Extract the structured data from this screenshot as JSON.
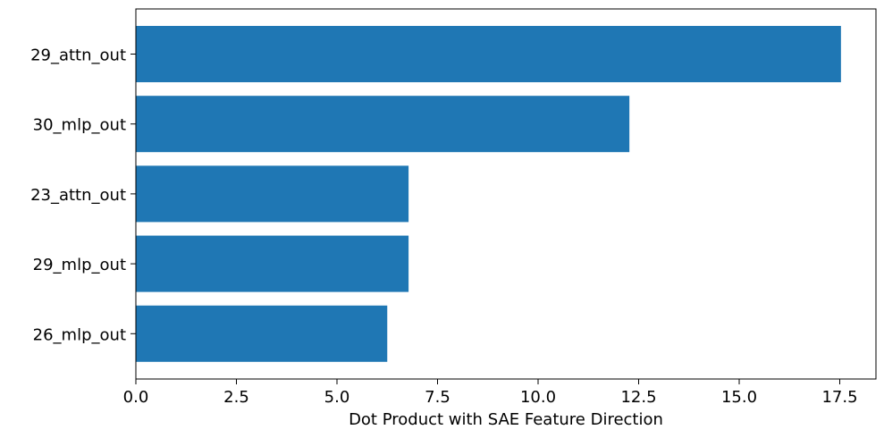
{
  "chart_data": {
    "type": "bar",
    "orientation": "horizontal",
    "categories": [
      "29_attn_out",
      "30_mlp_out",
      "23_attn_out",
      "29_mlp_out",
      "26_mlp_out"
    ],
    "values": [
      17.53,
      12.27,
      6.78,
      6.78,
      6.25
    ],
    "title": "",
    "xlabel": "Dot Product with SAE Feature Direction",
    "ylabel": "",
    "xlim": [
      0,
      18.4
    ],
    "xticks": [
      0.0,
      2.5,
      5.0,
      7.5,
      10.0,
      12.5,
      15.0,
      17.5
    ],
    "xtick_labels": [
      "0.0",
      "2.5",
      "5.0",
      "7.5",
      "10.0",
      "12.5",
      "15.0",
      "17.5"
    ],
    "grid": false,
    "bar_color": "#1f77b4"
  }
}
